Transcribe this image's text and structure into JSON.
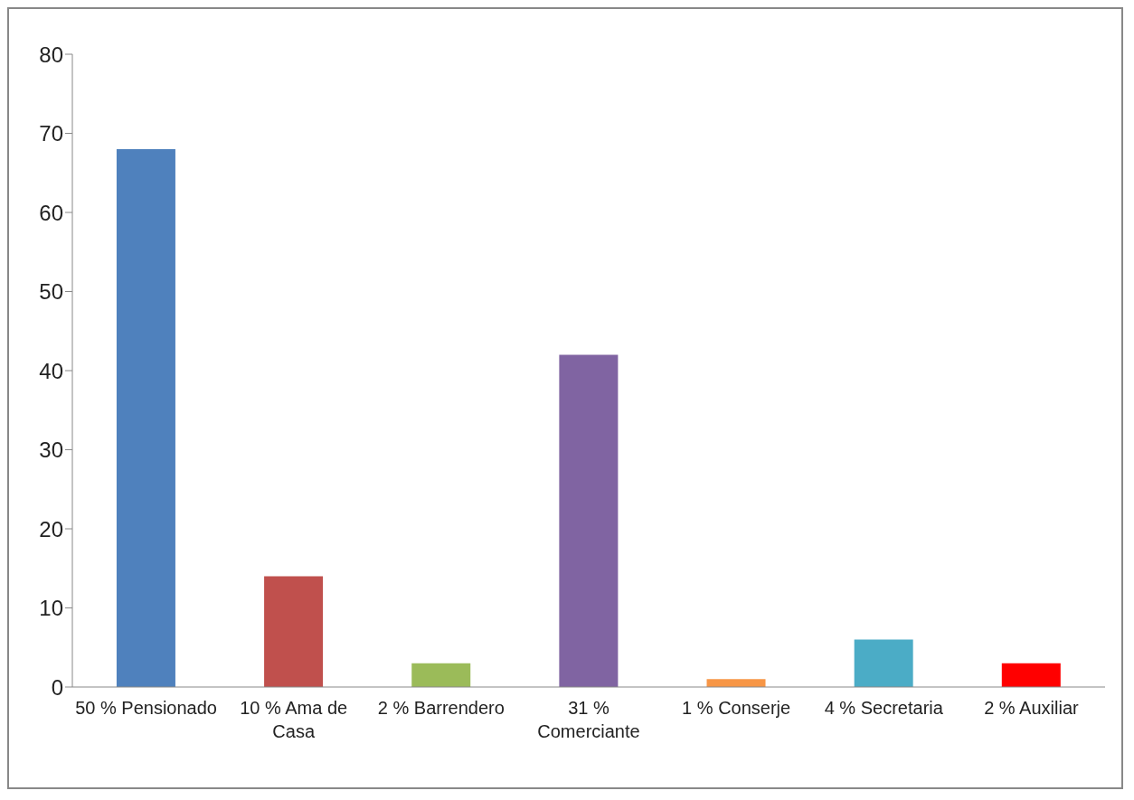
{
  "chart_data": {
    "type": "bar",
    "categories": [
      "50 % Pensionado",
      "10 % Ama de Casa",
      "2 % Barrendero",
      "31 % Comerciante",
      "1 % Conserje",
      "4 % Secretaria",
      "2 % Auxiliar"
    ],
    "values": [
      68,
      14,
      3,
      42,
      1,
      6,
      3
    ],
    "colors": [
      "#4f81bd",
      "#c0504d",
      "#9bbb59",
      "#8064a2",
      "#f79646",
      "#4bacc6",
      "#ff0000"
    ],
    "ylim": [
      0,
      80
    ],
    "yticks": [
      0,
      10,
      20,
      30,
      40,
      50,
      60,
      70,
      80
    ],
    "grid": false,
    "legend": false
  }
}
